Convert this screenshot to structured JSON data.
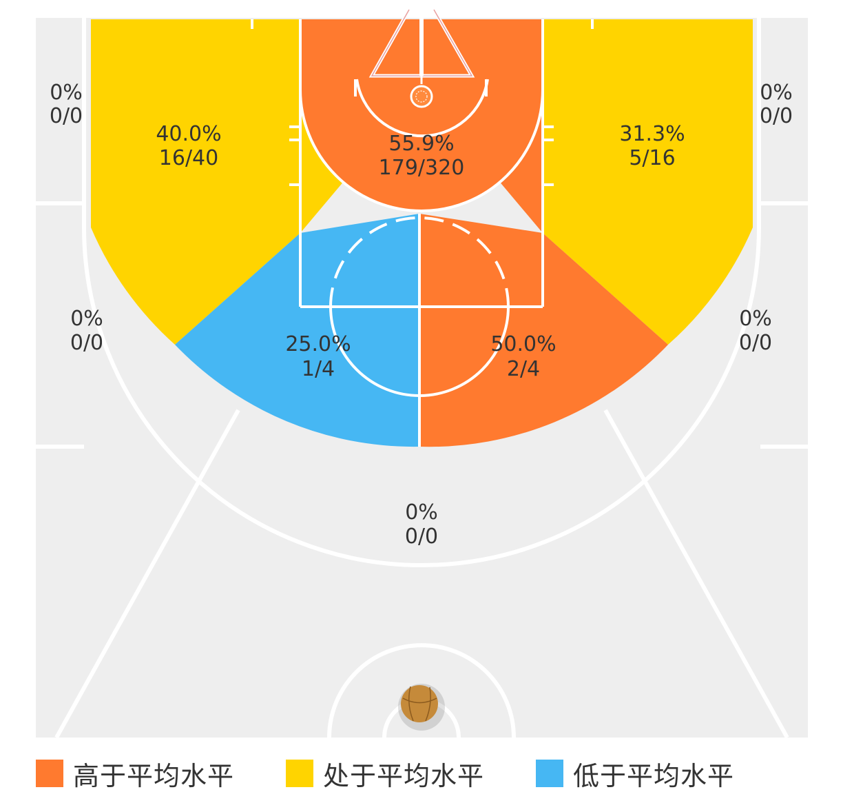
{
  "colors": {
    "above": "#FF7A2F",
    "average": "#FFD400",
    "below": "#46B7F3",
    "neutral": "#EEEEEE",
    "lines": "#FFFFFF"
  },
  "zones": {
    "left_corner": {
      "pct": "0%",
      "made_att": "0/0",
      "level": "neutral"
    },
    "right_corner": {
      "pct": "0%",
      "made_att": "0/0",
      "level": "neutral"
    },
    "left_wing_three": {
      "pct": "0%",
      "made_att": "0/0",
      "level": "neutral"
    },
    "right_wing_three": {
      "pct": "0%",
      "made_att": "0/0",
      "level": "neutral"
    },
    "top_three": {
      "pct": "0%",
      "made_att": "0/0",
      "level": "neutral"
    },
    "left_baseline_mid": {
      "pct": "40.0%",
      "made_att": "16/40",
      "level": "average"
    },
    "right_baseline_mid": {
      "pct": "31.3%",
      "made_att": "5/16",
      "level": "average"
    },
    "paint": {
      "pct": "55.9%",
      "made_att": "179/320",
      "level": "above"
    },
    "left_elbow_mid": {
      "pct": "25.0%",
      "made_att": "1/4",
      "level": "below"
    },
    "right_elbow_mid": {
      "pct": "50.0%",
      "made_att": "2/4",
      "level": "above"
    }
  },
  "legend": [
    {
      "label": "高于平均水平",
      "color": "#FF7A2F"
    },
    {
      "label": "处于平均水平",
      "color": "#FFD400"
    },
    {
      "label": "低于平均水平",
      "color": "#46B7F3"
    }
  ],
  "icons": {
    "ball": "basketball-icon",
    "hoop": "basket-hoop-icon"
  }
}
